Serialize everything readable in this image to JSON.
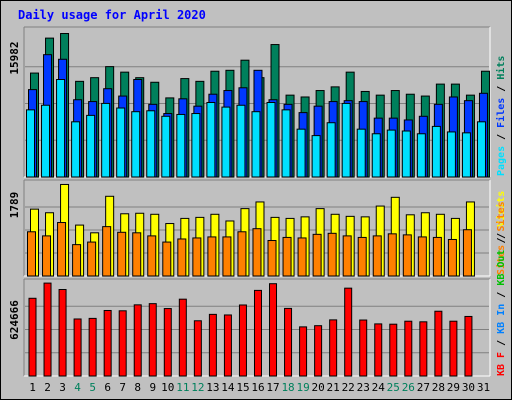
{
  "title": "Daily usage for April 2020",
  "colors": {
    "hits": "#00805c",
    "files": "#0038ff",
    "pages": "#00e0ff",
    "visits": "#ffff00",
    "sites": "#ff8000",
    "kbin": "#0080ff",
    "kbout": "#00c000",
    "kbf": "#ff0000",
    "title": "#0000ff",
    "weekend": "#00805c",
    "weekday": "#000000"
  },
  "chart_data": [
    {
      "type": "bar",
      "panel": "hits-files-pages",
      "categories": [
        "1",
        "2",
        "3",
        "4",
        "5",
        "6",
        "7",
        "8",
        "9",
        "10",
        "11",
        "12",
        "13",
        "14",
        "15",
        "16",
        "17",
        "18",
        "19",
        "20",
        "21",
        "22",
        "23",
        "24",
        "25",
        "26",
        "27",
        "28",
        "29",
        "30",
        "31"
      ],
      "y_tick_label": "15982",
      "ylim": [
        0,
        15982
      ],
      "legend": [
        "Pages",
        "/",
        "Files",
        "/",
        "Hits"
      ],
      "series": [
        {
          "name": "Hits",
          "values": [
            11300,
            15100,
            15600,
            10400,
            10800,
            12000,
            11400,
            10800,
            10300,
            8600,
            10700,
            10400,
            11500,
            11600,
            12700,
            10800,
            14400,
            8900,
            8700,
            9400,
            9800,
            11400,
            9300,
            8900,
            9400,
            9000,
            8800,
            10100,
            10100,
            8900,
            11500
          ]
        },
        {
          "name": "Files",
          "values": [
            9500,
            13300,
            12800,
            8400,
            8200,
            9600,
            8800,
            10600,
            7900,
            6900,
            8500,
            7700,
            9000,
            9400,
            9700,
            11600,
            8400,
            7900,
            7000,
            7700,
            8200,
            8300,
            8200,
            6400,
            6400,
            6200,
            6600,
            7900,
            8700,
            8300,
            9100
          ]
        },
        {
          "name": "Pages",
          "values": [
            7300,
            7800,
            10600,
            6000,
            6700,
            8000,
            7500,
            7100,
            7200,
            6600,
            6800,
            6900,
            8100,
            7600,
            7800,
            7100,
            8100,
            7300,
            5200,
            4500,
            5900,
            8000,
            5200,
            4700,
            5100,
            5000,
            4700,
            5500,
            4900,
            4800,
            6000
          ]
        }
      ]
    },
    {
      "type": "bar",
      "panel": "visits-sites",
      "categories": [
        "1",
        "2",
        "3",
        "4",
        "5",
        "6",
        "7",
        "8",
        "9",
        "10",
        "11",
        "12",
        "13",
        "14",
        "15",
        "16",
        "17",
        "18",
        "19",
        "20",
        "21",
        "22",
        "23",
        "24",
        "25",
        "26",
        "27",
        "28",
        "29",
        "30",
        "31"
      ],
      "y_tick_label": "1789",
      "ylim": [
        0,
        1789
      ],
      "legend": [
        "Sites",
        "/",
        "Visits"
      ],
      "series": [
        {
          "name": "Visits",
          "values": [
            1300,
            1230,
            1780,
            990,
            840,
            1550,
            1210,
            1220,
            1200,
            1020,
            1120,
            1140,
            1200,
            1070,
            1310,
            1440,
            1140,
            1120,
            1150,
            1310,
            1200,
            1160,
            1150,
            1360,
            1530,
            1190,
            1230,
            1200,
            1120,
            1440,
            0
          ]
        },
        {
          "name": "Sites",
          "values": [
            860,
            780,
            1040,
            610,
            660,
            960,
            850,
            840,
            780,
            660,
            720,
            740,
            760,
            760,
            860,
            920,
            690,
            750,
            740,
            810,
            830,
            780,
            750,
            780,
            820,
            800,
            760,
            750,
            710,
            900,
            0
          ]
        }
      ]
    },
    {
      "type": "bar",
      "panel": "kbf-kbin-kbout",
      "categories": [
        "1",
        "2",
        "3",
        "4",
        "5",
        "6",
        "7",
        "8",
        "9",
        "10",
        "11",
        "12",
        "13",
        "14",
        "15",
        "16",
        "17",
        "18",
        "19",
        "20",
        "21",
        "22",
        "23",
        "24",
        "25",
        "26",
        "27",
        "28",
        "29",
        "30",
        "31"
      ],
      "y_tick_label": "624666",
      "ylim": [
        0,
        624666
      ],
      "legend": [
        "KB F",
        "/",
        "KB In",
        "/",
        "KB Out",
        "/",
        "Sites"
      ],
      "series": [
        {
          "name": "KB F",
          "values": [
            522000,
            624000,
            581000,
            383000,
            387000,
            440000,
            438000,
            478000,
            486000,
            453000,
            516000,
            371000,
            414000,
            410000,
            477000,
            575000,
            620000,
            454000,
            330000,
            338000,
            377000,
            590000,
            376000,
            350000,
            348000,
            368000,
            364000,
            435000,
            368000,
            400000,
            0
          ]
        }
      ]
    }
  ],
  "xaxis": {
    "labels": [
      "1",
      "2",
      "3",
      "4",
      "5",
      "6",
      "7",
      "8",
      "9",
      "10",
      "11",
      "12",
      "13",
      "14",
      "15",
      "16",
      "17",
      "18",
      "19",
      "20",
      "21",
      "22",
      "23",
      "24",
      "25",
      "26",
      "27",
      "28",
      "29",
      "30",
      "31"
    ],
    "weekend_days": [
      "4",
      "5",
      "11",
      "12",
      "18",
      "19",
      "25",
      "26"
    ]
  }
}
